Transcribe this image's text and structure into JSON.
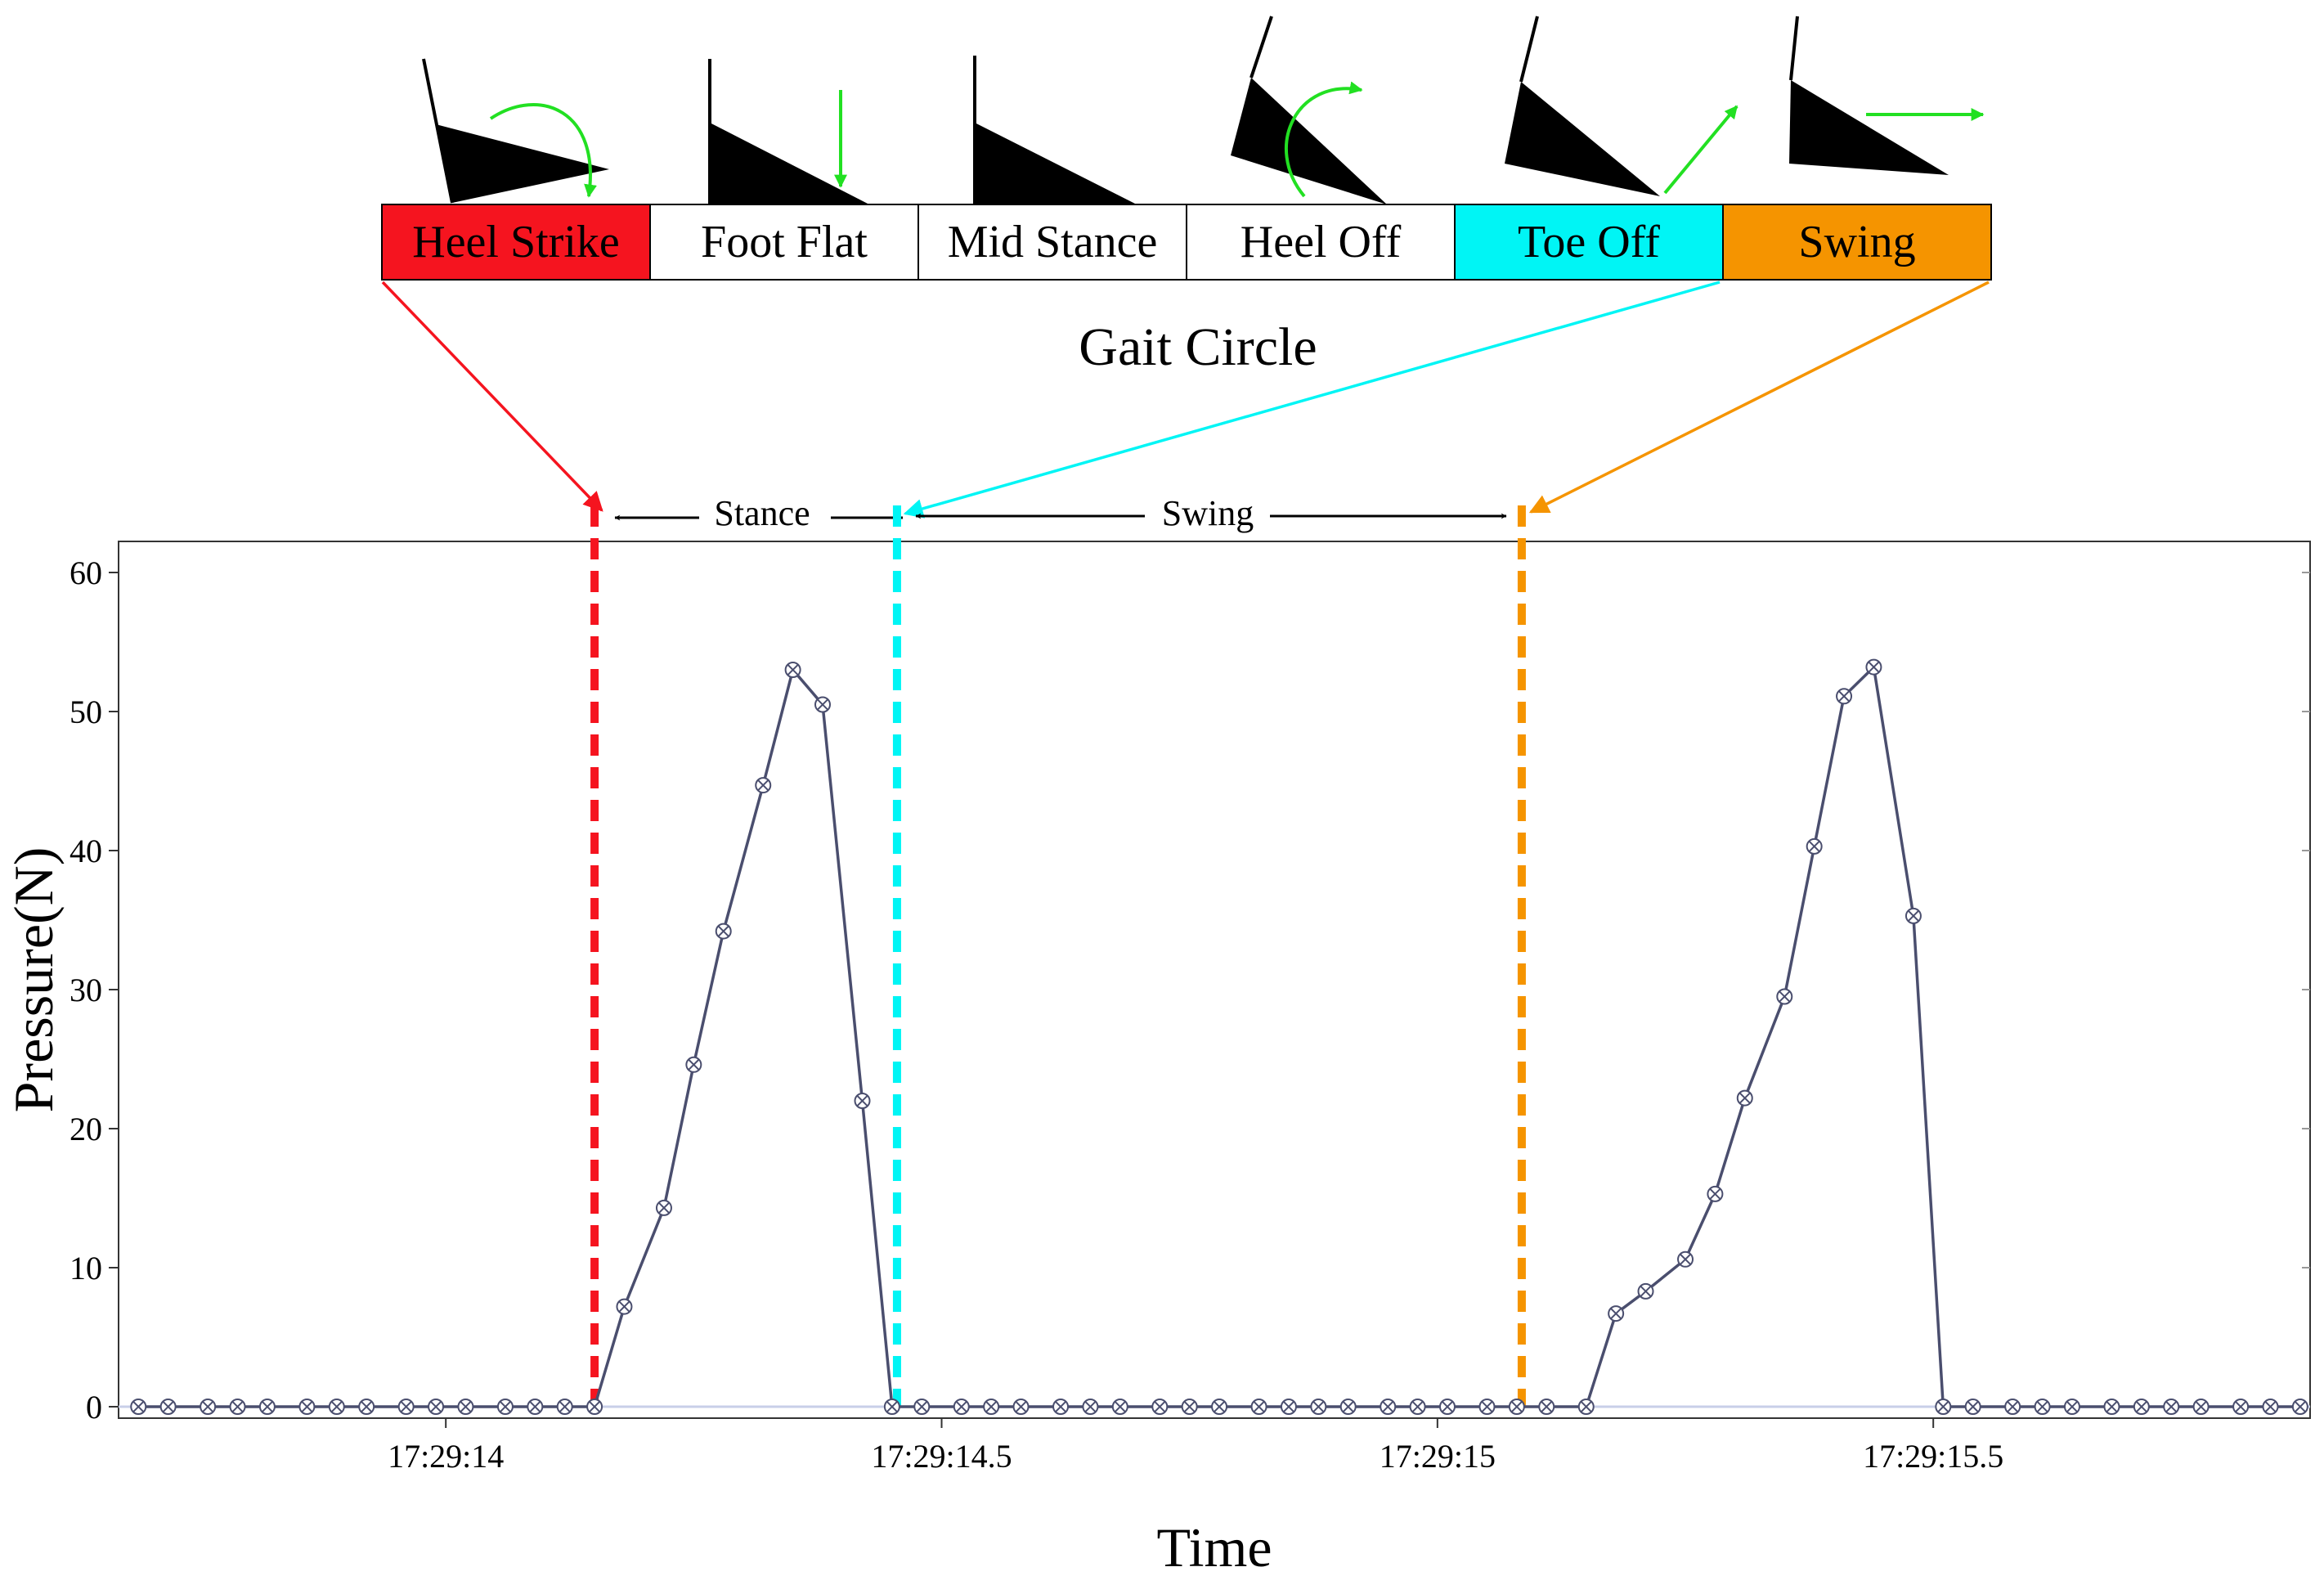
{
  "gait_diagram": {
    "caption": "Gait Circle",
    "phases": [
      {
        "label": "Heel Strike",
        "color": "#f5141f"
      },
      {
        "label": "Foot Flat",
        "color": "#ffffff"
      },
      {
        "label": "Mid Stance",
        "color": "#ffffff"
      },
      {
        "label": "Heel Off",
        "color": "#ffffff"
      },
      {
        "label": "Toe Off",
        "color": "#00f5f5"
      },
      {
        "label": "Swing",
        "color": "#f59400"
      }
    ],
    "arrow_color": "#22e022"
  },
  "annotations": {
    "stance_label": "Stance",
    "swing_label": "Swing"
  },
  "chart_data": {
    "type": "line",
    "title": "",
    "xlabel": "Time",
    "ylabel": "Pressure(N)",
    "xlim": [
      13.67,
      15.88
    ],
    "ylim": [
      0,
      62
    ],
    "x_ticks": [
      {
        "value": 14.0,
        "label": "17:29:14"
      },
      {
        "value": 14.5,
        "label": "17:29:14.5"
      },
      {
        "value": 15.0,
        "label": "17:29:15"
      },
      {
        "value": 15.5,
        "label": "17:29:15.5"
      }
    ],
    "y_ticks": [
      0,
      10,
      20,
      30,
      40,
      50,
      60
    ],
    "series": [
      {
        "name": "Pressure",
        "color": "#4a4e6e",
        "x": [
          13.69,
          13.72,
          13.76,
          13.79,
          13.82,
          13.86,
          13.89,
          13.92,
          13.96,
          13.99,
          14.02,
          14.06,
          14.09,
          14.12,
          14.15,
          14.18,
          14.22,
          14.25,
          14.28,
          14.32,
          14.35,
          14.38,
          14.42,
          14.45,
          14.48,
          14.52,
          14.55,
          14.58,
          14.62,
          14.65,
          14.68,
          14.72,
          14.75,
          14.78,
          14.82,
          14.85,
          14.88,
          14.91,
          14.95,
          14.98,
          15.01,
          15.05,
          15.08,
          15.11,
          15.15,
          15.18,
          15.21,
          15.25,
          15.28,
          15.31,
          15.35,
          15.38,
          15.41,
          15.44,
          15.48,
          15.51,
          15.54,
          15.58,
          15.61,
          15.64,
          15.68,
          15.71,
          15.74,
          15.77,
          15.81,
          15.84,
          15.87
        ],
        "values": [
          0,
          0,
          0,
          0,
          0,
          0,
          0,
          0,
          0,
          0,
          0,
          0,
          0,
          0,
          0,
          7.2,
          14.3,
          24.6,
          34.2,
          44.7,
          53.0,
          50.5,
          22.0,
          0,
          0,
          0,
          0,
          0,
          0,
          0,
          0,
          0,
          0,
          0,
          0,
          0,
          0,
          0,
          0,
          0,
          0,
          0,
          0,
          0,
          0,
          6.7,
          8.3,
          10.6,
          15.3,
          22.2,
          29.5,
          40.3,
          51.1,
          53.2,
          35.3,
          0,
          0,
          0,
          0,
          0,
          0,
          0,
          0,
          0,
          0,
          0,
          0
        ]
      }
    ],
    "event_lines": [
      {
        "name": "Heel Strike",
        "x": 14.15,
        "color": "#f5141f"
      },
      {
        "name": "Toe Off",
        "x": 14.455,
        "color": "#00f5f5"
      },
      {
        "name": "Swing",
        "x": 15.085,
        "color": "#f59400"
      }
    ]
  }
}
